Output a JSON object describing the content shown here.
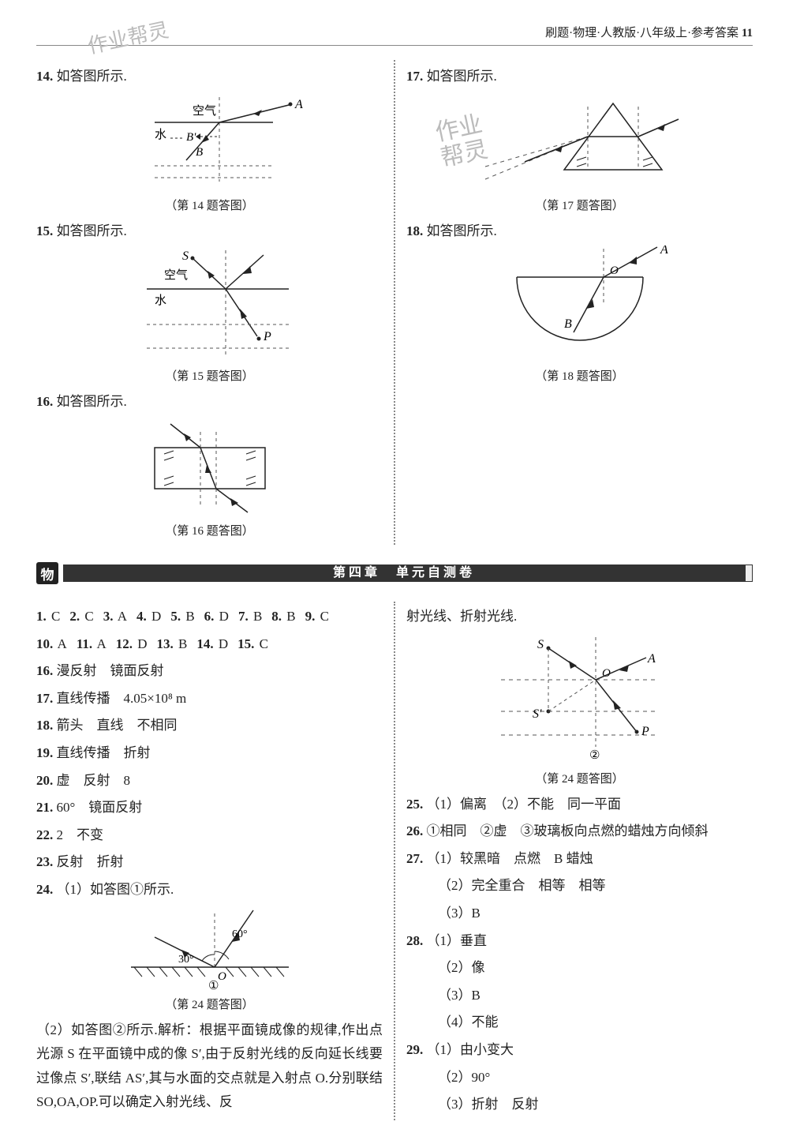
{
  "header": {
    "text": "刷题·物理·人教版·八年级上·参考答案",
    "page_num": "11"
  },
  "watermarks": {
    "top_left": "作业帮灵",
    "mid_right": "作业\n帮灵",
    "mid_left": ""
  },
  "top_left": {
    "q14": {
      "num": "14.",
      "text": "如答图所示.",
      "cap": "（第 14 题答图）",
      "labels": {
        "air": "空气",
        "water": "水",
        "A": "A",
        "B": "B",
        "Bp": "B'"
      }
    },
    "q15": {
      "num": "15.",
      "text": "如答图所示.",
      "cap": "（第 15 题答图）",
      "labels": {
        "S": "S",
        "air": "空气",
        "water": "水",
        "P": "P"
      }
    },
    "q16": {
      "num": "16.",
      "text": "如答图所示.",
      "cap": "（第 16 题答图）"
    }
  },
  "top_right": {
    "q17": {
      "num": "17.",
      "text": "如答图所示.",
      "cap": "（第 17 题答图）"
    },
    "q18": {
      "num": "18.",
      "text": "如答图所示.",
      "cap": "（第 18 题答图）",
      "labels": {
        "A": "A",
        "O": "O",
        "B": "B"
      }
    }
  },
  "chapter": {
    "title": "第四章　单元自测卷"
  },
  "answers_left": {
    "mc": [
      {
        "n": "1.",
        "v": "C"
      },
      {
        "n": "2.",
        "v": "C"
      },
      {
        "n": "3.",
        "v": "A"
      },
      {
        "n": "4.",
        "v": "D"
      },
      {
        "n": "5.",
        "v": "B"
      },
      {
        "n": "6.",
        "v": "D"
      },
      {
        "n": "7.",
        "v": "B"
      },
      {
        "n": "8.",
        "v": "B"
      },
      {
        "n": "9.",
        "v": "C"
      }
    ],
    "mc2": [
      {
        "n": "10.",
        "v": "A"
      },
      {
        "n": "11.",
        "v": "A"
      },
      {
        "n": "12.",
        "v": "D"
      },
      {
        "n": "13.",
        "v": "B"
      },
      {
        "n": "14.",
        "v": "D"
      },
      {
        "n": "15.",
        "v": "C"
      }
    ],
    "l16": {
      "n": "16.",
      "v": "漫反射　镜面反射"
    },
    "l17": {
      "n": "17.",
      "v": "直线传播　4.05×10⁸ m"
    },
    "l18": {
      "n": "18.",
      "v": "箭头　直线　不相同"
    },
    "l19": {
      "n": "19.",
      "v": "直线传播　折射"
    },
    "l20": {
      "n": "20.",
      "v": "虚　反射　8"
    },
    "l21": {
      "n": "21.",
      "v": "60°　镜面反射"
    },
    "l22": {
      "n": "22.",
      "v": "2　不变"
    },
    "l23": {
      "n": "23.",
      "v": "反射　折射"
    },
    "l24a": {
      "n": "24.",
      "v": "（1）如答图①所示."
    },
    "fig24a": {
      "cap": "（第 24 题答图）",
      "labels": {
        "ang60": "60°",
        "ang30": "30°",
        "O": "O",
        "circ": "①"
      }
    },
    "l24b": "（2）如答图②所示.解析：根据平面镜成像的规律,作出点光源 S 在平面镜中成的像 S′,由于反射光线的反向延长线要过像点 S′,联结 AS′,其与水面的交点就是入射点 O.分别联结 SO,OA,OP.可以确定入射光线、反"
  },
  "answers_right": {
    "cont": "射光线、折射光线.",
    "fig24b": {
      "cap": "（第 24 题答图）",
      "labels": {
        "S": "S",
        "A": "A",
        "O": "O",
        "Sp": "S′",
        "P": "P",
        "circ": "②"
      }
    },
    "l25": {
      "n": "25.",
      "v": "（1）偏离　（2）不能　同一平面"
    },
    "l26": {
      "n": "26.",
      "v": "①相同　②虚　③玻璃板向点燃的蜡烛方向倾斜"
    },
    "l27a": {
      "n": "27.",
      "v": "（1）较黑暗　点燃　B 蜡烛"
    },
    "l27b": "（2）完全重合　相等　相等",
    "l27c": "（3）B",
    "l28a": {
      "n": "28.",
      "v": "（1）垂直"
    },
    "l28b": "（2）像",
    "l28c": "（3）B",
    "l28d": "（4）不能",
    "l29a": {
      "n": "29.",
      "v": "（1）由小变大"
    },
    "l29b": "（2）90°",
    "l29c": "（3）折射　反射"
  },
  "colors": {
    "line": "#222222",
    "dash": "#555555",
    "bar": "#333333"
  }
}
